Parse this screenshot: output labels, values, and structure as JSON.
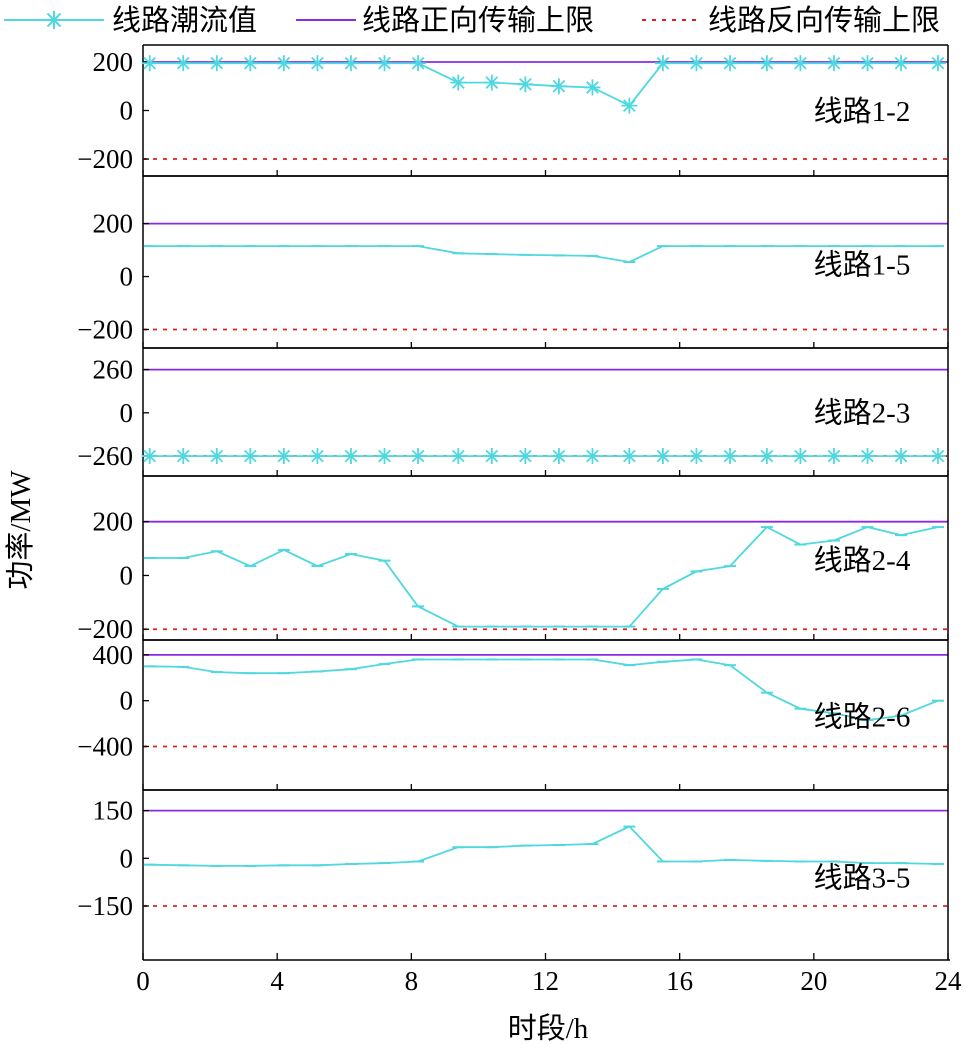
{
  "legend": {
    "flow": "线路潮流值",
    "upper": "线路正向传输上限",
    "lower": "线路反向传输上限"
  },
  "ylabel": "功率/MW",
  "xlabel": "时段/h",
  "colors": {
    "flow": "#4fd8df",
    "upper": "#8a2be2",
    "lower": "#e02020"
  },
  "chart_data": {
    "type": "line",
    "title": "",
    "xlabel": "时段/h",
    "ylabel": "功率/MW",
    "xlim": [
      0,
      24
    ],
    "xticks": [
      0,
      4,
      8,
      12,
      16,
      20,
      24
    ],
    "x": [
      0.2,
      1.2,
      2.2,
      3.2,
      4.2,
      5.2,
      6.2,
      7.2,
      8.2,
      9.4,
      10.4,
      11.4,
      12.4,
      13.4,
      14.5,
      15.5,
      16.5,
      17.5,
      18.6,
      19.6,
      20.6,
      21.6,
      22.6,
      23.7
    ],
    "panels": [
      {
        "label": "线路1-2",
        "ylim": [
          -270,
          270
        ],
        "yticks": [
          "200",
          "0",
          "−200"
        ],
        "ytick_values": [
          200,
          0,
          -200
        ],
        "upper": 200,
        "lower": -200,
        "flow": [
          195,
          195,
          195,
          195,
          195,
          195,
          195,
          195,
          195,
          115,
          115,
          108,
          100,
          95,
          20,
          195,
          195,
          195,
          195,
          195,
          195,
          195,
          195,
          195
        ]
      },
      {
        "label": "线路1-5",
        "ylim": [
          -270,
          380
        ],
        "yticks": [
          "200",
          "0",
          "−200"
        ],
        "ytick_values": [
          200,
          0,
          -200
        ],
        "upper": 200,
        "lower": -200,
        "flow": [
          115,
          115,
          115,
          115,
          115,
          115,
          115,
          115,
          115,
          88,
          85,
          82,
          80,
          78,
          55,
          115,
          115,
          115,
          115,
          115,
          115,
          115,
          115,
          115
        ]
      },
      {
        "label": "线路2-3",
        "ylim": [
          -380,
          390
        ],
        "yticks": [
          "260",
          "0",
          "−260"
        ],
        "ytick_values": [
          260,
          0,
          -260
        ],
        "upper": 260,
        "lower": -260,
        "flow": [
          -260,
          -260,
          -260,
          -260,
          -260,
          -260,
          -260,
          -260,
          -260,
          -260,
          -260,
          -260,
          -260,
          -260,
          -260,
          -260,
          -260,
          -260,
          -260,
          -260,
          -260,
          -260,
          -260,
          -260
        ]
      },
      {
        "label": "线路2-4",
        "ylim": [
          -240,
          370
        ],
        "yticks": [
          "200",
          "0",
          "−200"
        ],
        "ytick_values": [
          200,
          0,
          -200
        ],
        "upper": 200,
        "lower": -200,
        "flow": [
          65,
          65,
          90,
          35,
          95,
          35,
          80,
          55,
          -115,
          -190,
          -190,
          -190,
          -190,
          -190,
          -190,
          -50,
          15,
          35,
          180,
          115,
          130,
          180,
          150,
          180
        ]
      },
      {
        "label": "线路2-6",
        "ylim": [
          -780,
          530
        ],
        "yticks": [
          "400",
          "0",
          "−400"
        ],
        "ytick_values": [
          400,
          0,
          -400
        ],
        "upper": 400,
        "lower": -400,
        "flow": [
          300,
          295,
          250,
          240,
          240,
          255,
          275,
          320,
          360,
          360,
          360,
          360,
          360,
          360,
          310,
          340,
          360,
          310,
          70,
          -70,
          -110,
          -170,
          -130,
          0
        ]
      },
      {
        "label": "线路3-5",
        "ylim": [
          -320,
          215
        ],
        "yticks": [
          "150",
          "0",
          "−150"
        ],
        "ytick_values": [
          150,
          0,
          -150
        ],
        "upper": 150,
        "lower": -150,
        "flow": [
          -20,
          -22,
          -24,
          -24,
          -22,
          -22,
          -18,
          -15,
          -10,
          35,
          35,
          40,
          42,
          45,
          100,
          -10,
          -10,
          -5,
          -8,
          -10,
          -10,
          -15,
          -15,
          -18
        ]
      }
    ]
  }
}
